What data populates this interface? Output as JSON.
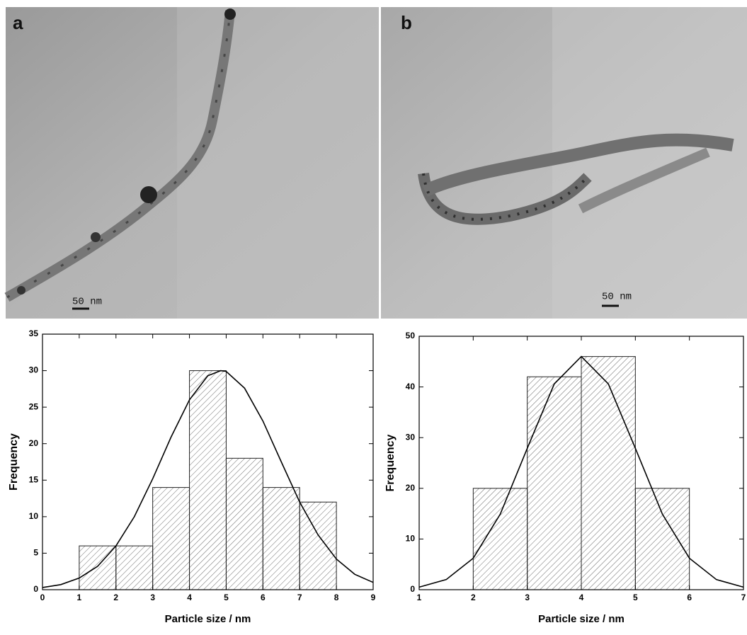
{
  "images": [
    {
      "label": "a",
      "scale_bar": "50 nm"
    },
    {
      "label": "b",
      "scale_bar": "50 nm"
    }
  ],
  "chart_data": [
    {
      "type": "histogram",
      "xlabel": "Particle size / nm",
      "ylabel": "Frequency",
      "bins": [
        1,
        2,
        3,
        4,
        5,
        6,
        7,
        8
      ],
      "counts": [
        6,
        6,
        14,
        30,
        18,
        14,
        12
      ],
      "xlim": [
        0,
        9
      ],
      "xticks": [
        0,
        1,
        2,
        3,
        4,
        5,
        6,
        7,
        8,
        9
      ],
      "ylim": [
        0,
        35
      ],
      "yticks": [
        0,
        5,
        10,
        15,
        20,
        25,
        30,
        35
      ],
      "fit": {
        "x": [
          0,
          0.5,
          1,
          1.5,
          2,
          2.5,
          3,
          3.5,
          4,
          4.5,
          4.85,
          5,
          5.5,
          6,
          6.5,
          7,
          7.5,
          8,
          8.5,
          9
        ],
        "y": [
          0.3,
          0.7,
          1.6,
          3.2,
          6.0,
          10.0,
          15.2,
          20.9,
          26.0,
          29.3,
          30,
          29.9,
          27.6,
          23.1,
          17.5,
          12.0,
          7.5,
          4.2,
          2.1,
          1.0
        ]
      }
    },
    {
      "type": "histogram",
      "xlabel": "Particle size / nm",
      "ylabel": "Frequency",
      "bins": [
        2,
        3,
        4,
        5,
        6
      ],
      "counts": [
        20,
        42,
        46,
        20
      ],
      "xlim": [
        1,
        7
      ],
      "xticks": [
        1,
        2,
        3,
        4,
        5,
        6,
        7
      ],
      "ylim": [
        0,
        50
      ],
      "yticks": [
        0,
        10,
        20,
        30,
        40,
        50
      ],
      "fit": {
        "x": [
          1,
          1.5,
          2,
          2.5,
          3,
          3.5,
          4,
          4.5,
          5,
          5.5,
          6,
          6.5,
          7
        ],
        "y": [
          0.5,
          2.0,
          6.2,
          14.9,
          27.9,
          40.6,
          46,
          40.6,
          27.9,
          14.9,
          6.2,
          2.0,
          0.5
        ]
      }
    }
  ]
}
